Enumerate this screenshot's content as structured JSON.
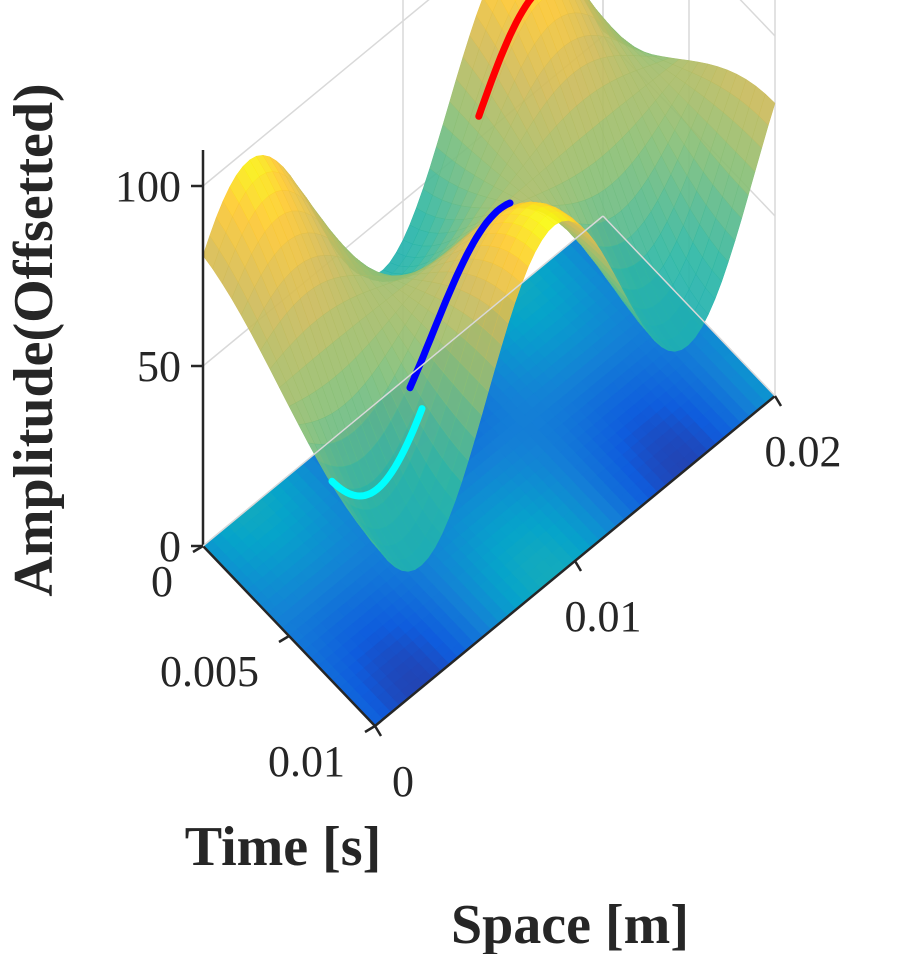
{
  "chart_data": {
    "type": "surface",
    "xlabel": "Space [m]",
    "ylabel": "Time [s]",
    "zlabel": "Amplitude(Offsetted)",
    "x_range": [
      0,
      0.02
    ],
    "y_range": [
      0,
      0.01
    ],
    "z_range": [
      0,
      110
    ],
    "x_ticks": [
      {
        "value": 0,
        "label": "0"
      },
      {
        "value": 0.01,
        "label": "0.01"
      },
      {
        "value": 0.02,
        "label": "0.02"
      }
    ],
    "y_ticks": [
      {
        "value": 0,
        "label": "0"
      },
      {
        "value": 0.005,
        "label": "0.005"
      },
      {
        "value": 0.01,
        "label": "0.01"
      }
    ],
    "z_ticks": [
      {
        "value": 0,
        "label": "0"
      },
      {
        "value": 50,
        "label": "50"
      },
      {
        "value": 100,
        "label": "100"
      }
    ],
    "grid": true,
    "surface": {
      "offset": 66,
      "amplitude": 32,
      "spatial_waves": 3,
      "description_colormap": "parula"
    },
    "floor_projection": {
      "z": 0,
      "colormap": "parula"
    },
    "highlighted_curves": [
      {
        "color": "#00ffff",
        "x_range": [
          0.0,
          0.0045
        ],
        "y": 0.0075
      },
      {
        "color": "#0000ff",
        "x_range": [
          0.0045,
          0.0095
        ],
        "y": 0.0068
      },
      {
        "color": "#ff0000",
        "x_range": [
          0.0125,
          0.0172
        ],
        "y": 0.0015
      }
    ]
  }
}
